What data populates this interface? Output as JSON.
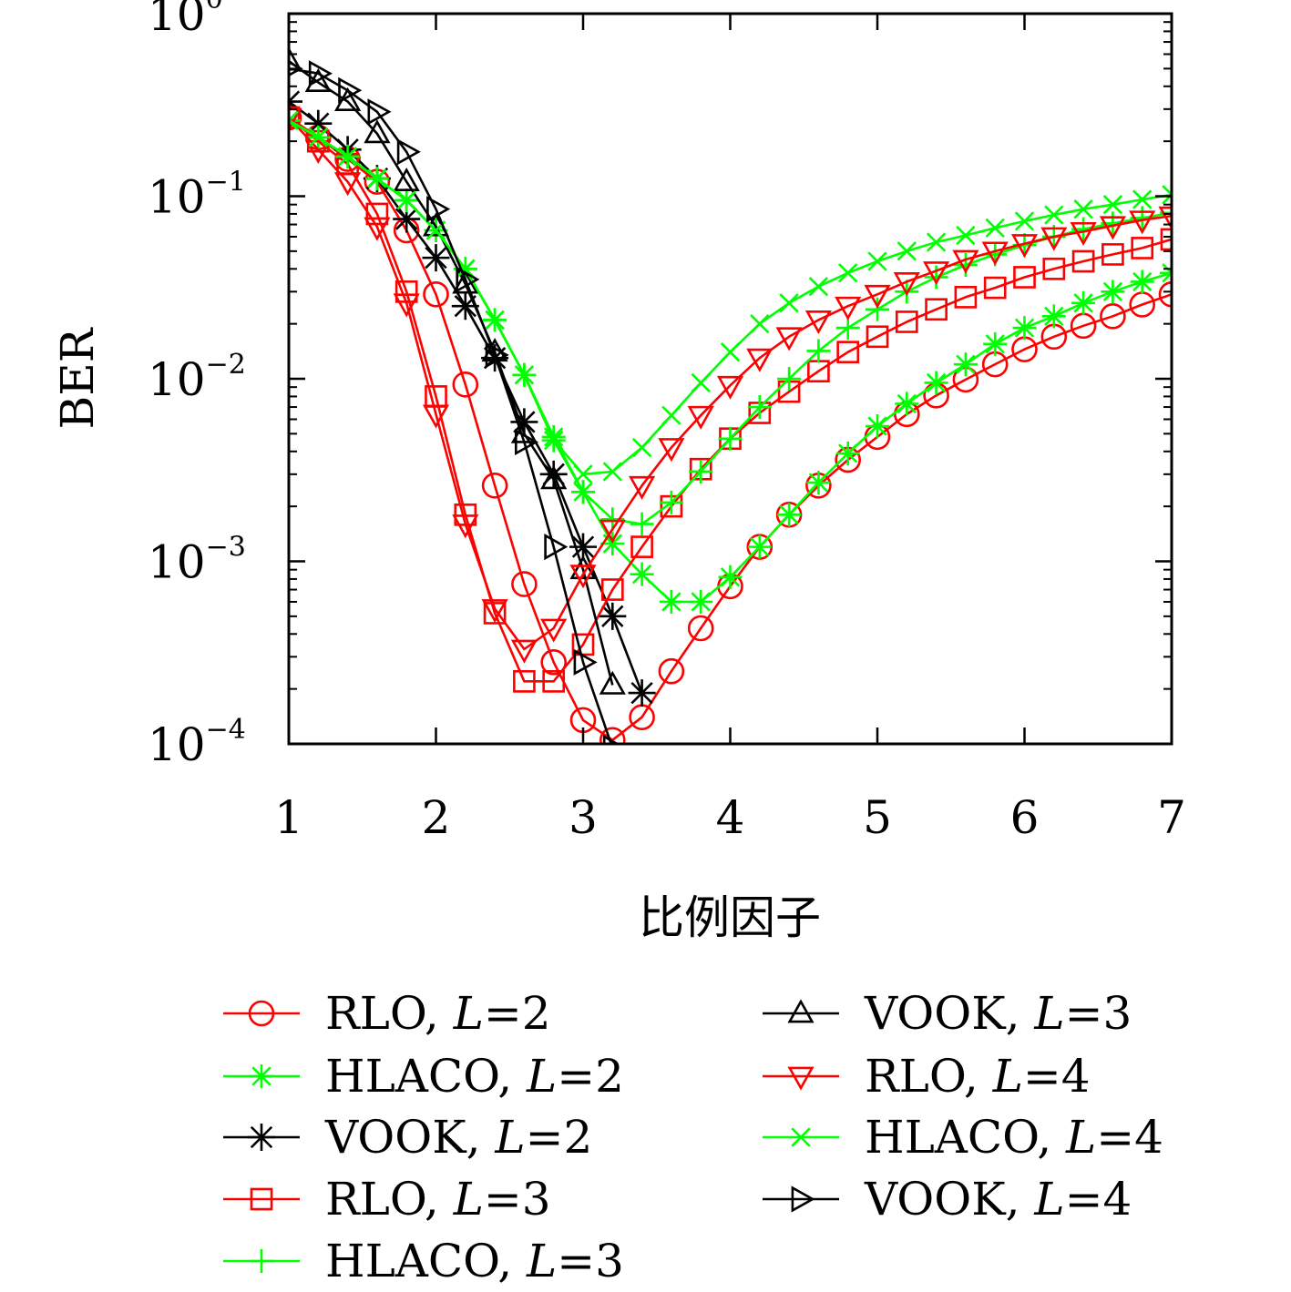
{
  "chart_data": {
    "type": "line",
    "xlabel": "比例因子",
    "ylabel": "BER",
    "xlim": [
      1,
      7
    ],
    "ylim": [
      0.0001,
      1
    ],
    "yscale": "log",
    "x_ticks": [
      "1",
      "2",
      "3",
      "4",
      "5",
      "6",
      "7"
    ],
    "y_ticks": [
      {
        "base": "10",
        "exp": "0",
        "value": 1
      },
      {
        "base": "10",
        "exp": "−1",
        "value": 0.1
      },
      {
        "base": "10",
        "exp": "−2",
        "value": 0.01
      },
      {
        "base": "10",
        "exp": "−3",
        "value": 0.001
      },
      {
        "base": "10",
        "exp": "−4",
        "value": 0.0001
      }
    ],
    "grid": false,
    "legend_position": "below",
    "series": [
      {
        "name": "RLO, ",
        "param": "L",
        "eq": "=2",
        "color": "#ff0000",
        "marker": "circle",
        "x": [
          1,
          1.2,
          1.4,
          1.6,
          1.8,
          2,
          2.2,
          2.4,
          2.6,
          2.8,
          3,
          3.2,
          3.4,
          3.6,
          3.8,
          4,
          4.2,
          4.4,
          4.6,
          4.8,
          5,
          5.2,
          5.4,
          5.6,
          5.8,
          6,
          6.2,
          6.4,
          6.6,
          6.8,
          7
        ],
        "y": [
          0.27,
          0.21,
          0.16,
          0.12,
          0.065,
          0.029,
          0.0093,
          0.0026,
          0.00075,
          0.00028,
          0.000135,
          0.000105,
          0.00014,
          0.00025,
          0.00043,
          0.00073,
          0.0012,
          0.0018,
          0.0026,
          0.0036,
          0.0048,
          0.0064,
          0.0081,
          0.0099,
          0.012,
          0.0145,
          0.017,
          0.0195,
          0.022,
          0.0255,
          0.029
        ]
      },
      {
        "name": "HLACO, ",
        "param": "L",
        "eq": "=2",
        "color": "#00ff00",
        "marker": "asterisk",
        "x": [
          1,
          1.2,
          1.4,
          1.6,
          1.8,
          2,
          2.2,
          2.4,
          2.6,
          2.8,
          3,
          3.2,
          3.4,
          3.6,
          3.8,
          4,
          4.2,
          4.4,
          4.6,
          4.8,
          5,
          5.2,
          5.4,
          5.6,
          5.8,
          6,
          6.2,
          6.4,
          6.6,
          6.8,
          7
        ],
        "y": [
          0.26,
          0.21,
          0.165,
          0.125,
          0.095,
          0.065,
          0.04,
          0.021,
          0.0105,
          0.0048,
          0.0024,
          0.00125,
          0.00085,
          0.0006,
          0.0006,
          0.00082,
          0.0012,
          0.0018,
          0.0027,
          0.0039,
          0.0055,
          0.0073,
          0.0095,
          0.012,
          0.0155,
          0.019,
          0.022,
          0.026,
          0.03,
          0.034,
          0.038
        ]
      },
      {
        "name": "VOOK, ",
        "param": "L",
        "eq": "=2",
        "color": "#000000",
        "marker": "star",
        "x": [
          1,
          1.2,
          1.4,
          1.6,
          1.8,
          2,
          2.2,
          2.4,
          2.6,
          2.8,
          3,
          3.2,
          3.4
        ],
        "y": [
          0.33,
          0.25,
          0.18,
          0.125,
          0.075,
          0.046,
          0.025,
          0.013,
          0.0058,
          0.003,
          0.0012,
          0.0005,
          0.00019
        ]
      },
      {
        "name": "RLO, ",
        "param": "L",
        "eq": "=3",
        "color": "#ff0000",
        "marker": "square",
        "x": [
          1,
          1.2,
          1.4,
          1.6,
          1.8,
          2,
          2.2,
          2.4,
          2.6,
          2.8,
          3,
          3.2,
          3.4,
          3.6,
          3.8,
          4,
          4.2,
          4.4,
          4.6,
          4.8,
          5,
          5.2,
          5.4,
          5.6,
          5.8,
          6,
          6.2,
          6.4,
          6.6,
          6.8,
          7
        ],
        "y": [
          0.27,
          0.2,
          0.15,
          0.08,
          0.03,
          0.008,
          0.0018,
          0.00052,
          0.00022,
          0.00022,
          0.00035,
          0.0007,
          0.0012,
          0.002,
          0.0032,
          0.0047,
          0.0065,
          0.0085,
          0.011,
          0.014,
          0.017,
          0.0205,
          0.024,
          0.028,
          0.0315,
          0.036,
          0.04,
          0.044,
          0.048,
          0.052,
          0.058
        ]
      },
      {
        "name": "HLACO, ",
        "param": "L",
        "eq": "=3",
        "color": "#00ff00",
        "marker": "plus",
        "x": [
          1,
          1.2,
          1.4,
          1.6,
          1.8,
          2,
          2.2,
          2.4,
          2.6,
          2.8,
          3,
          3.2,
          3.4,
          3.6,
          3.8,
          4,
          4.2,
          4.4,
          4.6,
          4.8,
          5,
          5.2,
          5.4,
          5.6,
          5.8,
          6,
          6.2,
          6.4,
          6.6,
          6.8,
          7
        ],
        "y": [
          0.26,
          0.21,
          0.165,
          0.125,
          0.095,
          0.065,
          0.04,
          0.021,
          0.0105,
          0.0046,
          0.0024,
          0.0017,
          0.0016,
          0.0021,
          0.0031,
          0.0047,
          0.007,
          0.01,
          0.0142,
          0.019,
          0.024,
          0.03,
          0.036,
          0.042,
          0.048,
          0.054,
          0.06,
          0.066,
          0.071,
          0.076,
          0.081
        ]
      },
      {
        "name": "VOOK, ",
        "param": "L",
        "eq": "=3",
        "color": "#000000",
        "marker": "triangle-up",
        "x": [
          1,
          1.2,
          1.4,
          1.6,
          1.8,
          2,
          2.2,
          2.4,
          2.6,
          2.8,
          3,
          3.2
        ],
        "y": [
          0.55,
          0.42,
          0.33,
          0.22,
          0.12,
          0.068,
          0.033,
          0.014,
          0.005,
          0.0028,
          0.0009,
          0.00021
        ]
      },
      {
        "name": "RLO, ",
        "param": "L",
        "eq": "=4",
        "color": "#ff0000",
        "marker": "triangle-down",
        "x": [
          1,
          1.2,
          1.4,
          1.6,
          1.8,
          2,
          2.2,
          2.4,
          2.6,
          2.8,
          3,
          3.2,
          3.4,
          3.6,
          3.8,
          4,
          4.2,
          4.4,
          4.6,
          4.8,
          5,
          5.2,
          5.4,
          5.6,
          5.8,
          6,
          6.2,
          6.4,
          6.6,
          6.8,
          7
        ],
        "y": [
          0.27,
          0.18,
          0.12,
          0.068,
          0.026,
          0.0064,
          0.0016,
          0.00055,
          0.00033,
          0.00043,
          0.00085,
          0.0015,
          0.0026,
          0.0042,
          0.0063,
          0.0092,
          0.013,
          0.017,
          0.021,
          0.025,
          0.029,
          0.034,
          0.039,
          0.045,
          0.05,
          0.055,
          0.06,
          0.064,
          0.069,
          0.074,
          0.078
        ]
      },
      {
        "name": "HLACO, ",
        "param": "L",
        "eq": "=4",
        "color": "#00ff00",
        "marker": "cross",
        "x": [
          1,
          1.2,
          1.4,
          1.6,
          1.8,
          2,
          2.2,
          2.4,
          2.6,
          2.8,
          3,
          3.2,
          3.4,
          3.6,
          3.8,
          4,
          4.2,
          4.4,
          4.6,
          4.8,
          5,
          5.2,
          5.4,
          5.6,
          5.8,
          6,
          6.2,
          6.4,
          6.6,
          6.8,
          7
        ],
        "y": [
          0.26,
          0.21,
          0.165,
          0.125,
          0.095,
          0.065,
          0.04,
          0.021,
          0.0105,
          0.0046,
          0.003,
          0.0031,
          0.0042,
          0.0063,
          0.0095,
          0.014,
          0.02,
          0.026,
          0.032,
          0.038,
          0.044,
          0.05,
          0.056,
          0.061,
          0.067,
          0.073,
          0.079,
          0.085,
          0.09,
          0.096,
          0.102
        ]
      },
      {
        "name": "VOOK, ",
        "param": "L",
        "eq": "=4",
        "color": "#000000",
        "marker": "triangle-right",
        "x": [
          1,
          1.2,
          1.4,
          1.6,
          1.8,
          2,
          2.2,
          2.4,
          2.6,
          2.8,
          3,
          3.2
        ],
        "y": [
          0.5,
          0.47,
          0.38,
          0.29,
          0.175,
          0.085,
          0.035,
          0.0135,
          0.0045,
          0.0012,
          0.00028,
          9.5e-05
        ]
      }
    ]
  }
}
